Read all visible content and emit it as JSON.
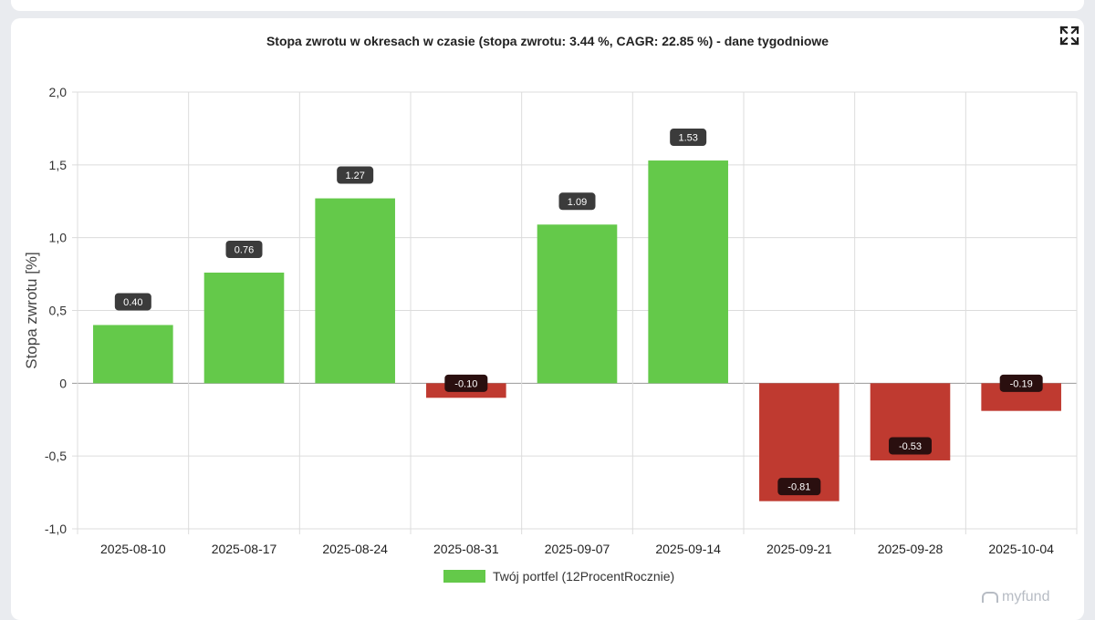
{
  "title": "Stopa zwrotu w okresach w czasie (stopa zwrotu: 3.44 %, CAGR: 22.85 %) - dane tygodniowe",
  "toolbar": {
    "expand_icon": "expand-icon"
  },
  "colors": {
    "positive": "#64c94a",
    "negative": "#bf3a30",
    "label_bg": "#3b3b3b",
    "label_bg_negative": "#2a0f0f"
  },
  "legend": {
    "label": "Twój portfel (12ProcentRocznie)",
    "color": "#64c94a"
  },
  "watermark": {
    "text": "myfund"
  },
  "chart_data": {
    "type": "bar",
    "title": "Stopa zwrotu w okresach w czasie (stopa zwrotu: 3.44 %, CAGR: 22.85 %) - dane tygodniowe",
    "xlabel": "",
    "ylabel": "Stopa zwrotu [%]",
    "ylim": [
      -1.0,
      2.0
    ],
    "yticks": [
      2.0,
      1.5,
      1.0,
      0.5,
      0,
      -0.5,
      -1.0
    ],
    "ytick_labels": [
      "2,0",
      "1,5",
      "1,0",
      "0,5",
      "0",
      "-0,5",
      "-1,0"
    ],
    "grid": true,
    "legend_position": "bottom",
    "categories": [
      "2025-08-10",
      "2025-08-17",
      "2025-08-24",
      "2025-08-31",
      "2025-09-07",
      "2025-09-14",
      "2025-09-21",
      "2025-09-28",
      "2025-10-04"
    ],
    "series": [
      {
        "name": "Twój portfel (12ProcentRocznie)",
        "values": [
          0.4,
          0.76,
          1.27,
          -0.1,
          1.09,
          1.53,
          -0.81,
          -0.53,
          -0.19
        ],
        "labels": [
          "0.40",
          "0.76",
          "1.27",
          "-0.10",
          "1.09",
          "1.53",
          "-0.81",
          "-0.53",
          "-0.19"
        ]
      }
    ]
  }
}
